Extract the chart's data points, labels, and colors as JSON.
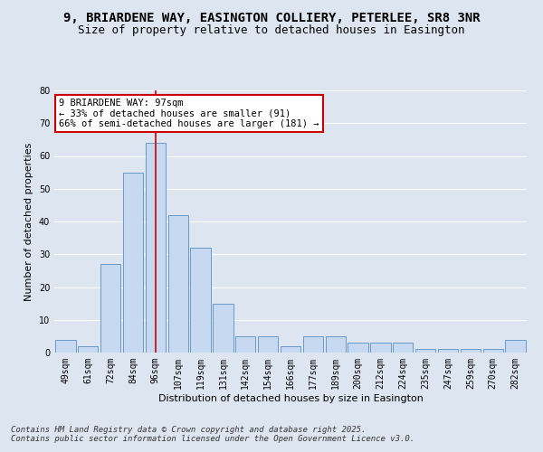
{
  "title_line1": "9, BRIARDENE WAY, EASINGTON COLLIERY, PETERLEE, SR8 3NR",
  "title_line2": "Size of property relative to detached houses in Easington",
  "xlabel": "Distribution of detached houses by size in Easington",
  "ylabel": "Number of detached properties",
  "categories": [
    "49sqm",
    "61sqm",
    "72sqm",
    "84sqm",
    "96sqm",
    "107sqm",
    "119sqm",
    "131sqm",
    "142sqm",
    "154sqm",
    "166sqm",
    "177sqm",
    "189sqm",
    "200sqm",
    "212sqm",
    "224sqm",
    "235sqm",
    "247sqm",
    "259sqm",
    "270sqm",
    "282sqm"
  ],
  "values": [
    4,
    2,
    27,
    55,
    64,
    42,
    32,
    15,
    5,
    5,
    2,
    5,
    5,
    3,
    3,
    3,
    1,
    1,
    1,
    1,
    4
  ],
  "bar_color": "#c6d9f0",
  "bar_edge_color": "#6699cc",
  "highlight_bar_index": 4,
  "highlight_line_color": "#cc0000",
  "annotation_text": "9 BRIARDENE WAY: 97sqm\n← 33% of detached houses are smaller (91)\n66% of semi-detached houses are larger (181) →",
  "annotation_box_color": "#ffffff",
  "annotation_edge_color": "#cc0000",
  "ylim": [
    0,
    80
  ],
  "yticks": [
    0,
    10,
    20,
    30,
    40,
    50,
    60,
    70,
    80
  ],
  "background_color": "#dde6f0",
  "grid_color": "#ffffff",
  "footnote": "Contains HM Land Registry data © Crown copyright and database right 2025.\nContains public sector information licensed under the Open Government Licence v3.0.",
  "title_fontsize": 10,
  "title2_fontsize": 9,
  "axis_label_fontsize": 8,
  "tick_fontsize": 7,
  "annotation_fontsize": 7.5,
  "footnote_fontsize": 6.5
}
